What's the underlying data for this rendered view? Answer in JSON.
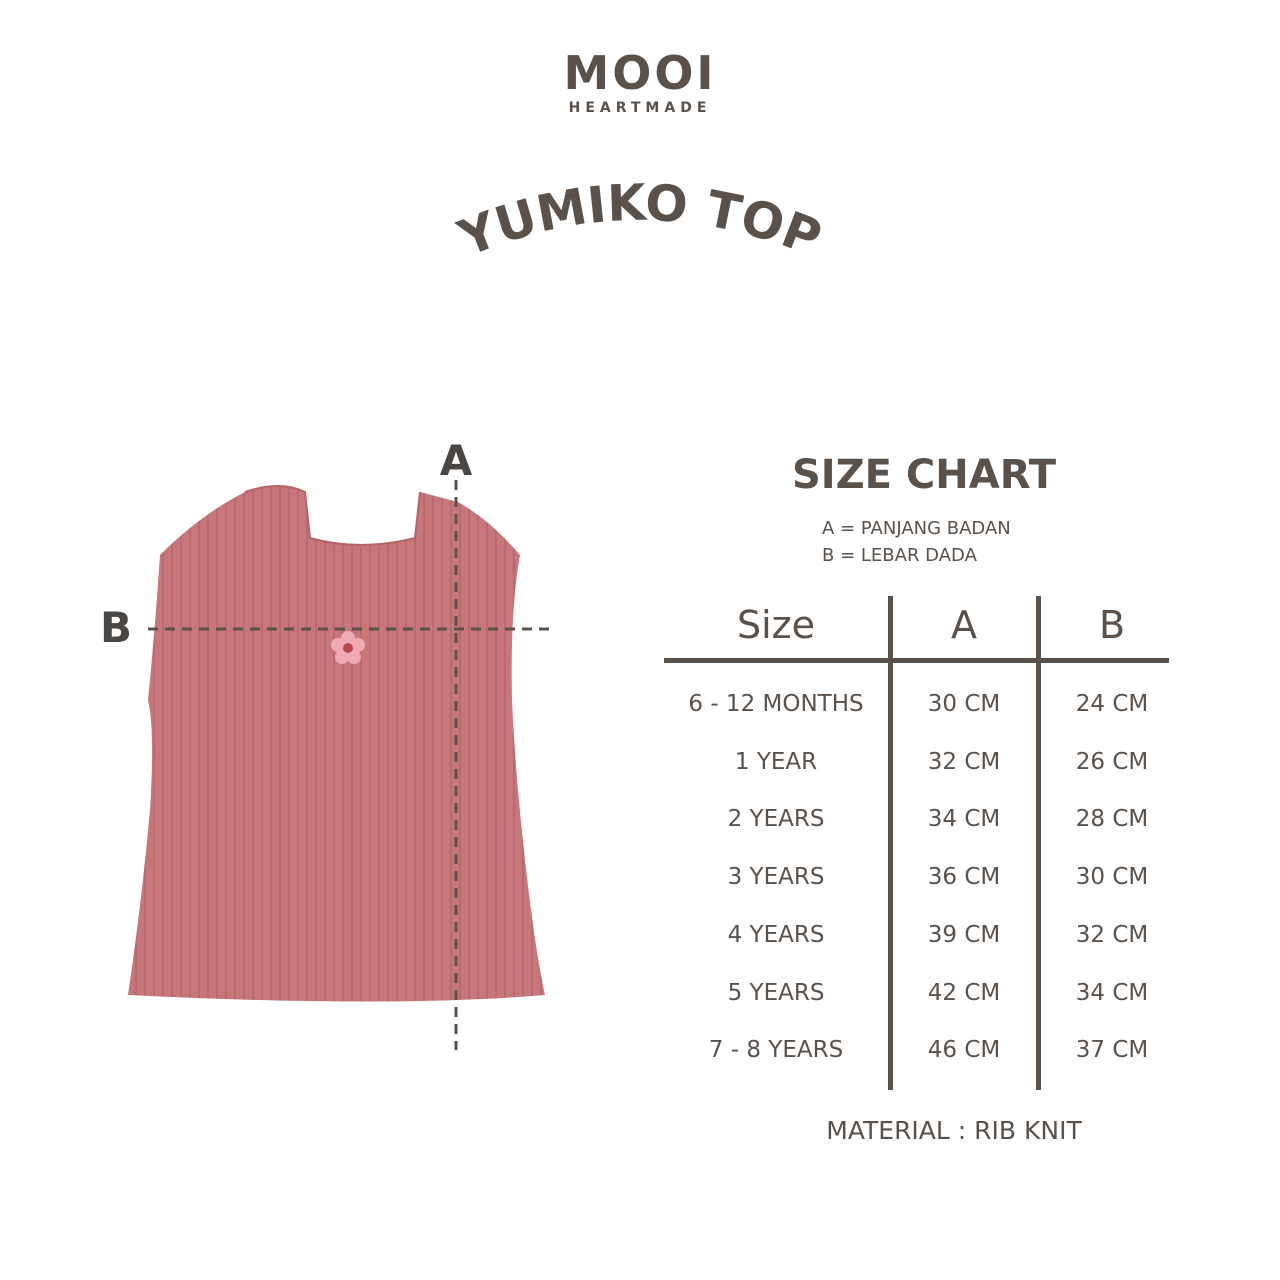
{
  "brand": {
    "name": "MOOI",
    "tagline": "HEARTMADE"
  },
  "product_title": "YUMIKO TOP",
  "diagram": {
    "label_a": "A",
    "label_b": "B",
    "garment_color": "#c7777a"
  },
  "size_chart": {
    "title": "SIZE CHART",
    "legend": [
      "A = PANJANG BADAN",
      "B = LEBAR DADA"
    ],
    "headers": [
      "Size",
      "A",
      "B"
    ],
    "rows": [
      [
        "6 - 12 MONTHS",
        "30 CM",
        "24 CM"
      ],
      [
        "1 YEAR",
        "32 CM",
        "26 CM"
      ],
      [
        "2 YEARS",
        "34 CM",
        "28 CM"
      ],
      [
        "3 YEARS",
        "36 CM",
        "30 CM"
      ],
      [
        "4 YEARS",
        "39 CM",
        "32 CM"
      ],
      [
        "5 YEARS",
        "42 CM",
        "34 CM"
      ],
      [
        "7 - 8 YEARS",
        "46 CM",
        "37 CM"
      ]
    ],
    "material": "MATERIAL : RIB KNIT"
  },
  "colors": {
    "text": "#5a514b",
    "background": "#ffffff"
  }
}
